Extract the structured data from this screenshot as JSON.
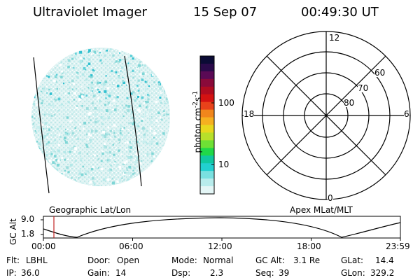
{
  "header": {
    "instrument": "Ultraviolet Imager",
    "date": "15 Sep 07",
    "time": "00:49:30 UT"
  },
  "colorbar": {
    "label": "photon cm-2s-1",
    "label_base": "photon cm",
    "label_exp1": "-2",
    "label_mid": "s",
    "label_exp2": "-1",
    "ticks": [
      "100",
      "10"
    ],
    "colors": [
      "#0b0b35",
      "#2a0a4a",
      "#5a0a55",
      "#8a0a3a",
      "#b00c20",
      "#d41212",
      "#e8421a",
      "#f0861c",
      "#f5b020",
      "#e8d81e",
      "#b8e02a",
      "#6ee035",
      "#20d848",
      "#10c8a0",
      "#22d0d0",
      "#7ae0e0",
      "#b8ecec",
      "#e4f6f6"
    ]
  },
  "left_panel": {
    "caption": "Geographic Lat/Lon"
  },
  "right_panel": {
    "caption": "Apex MLat/MLT",
    "mlt_labels": {
      "top": "12",
      "left": "18",
      "right": "6",
      "bottom": "0"
    },
    "lat_labels": [
      "60",
      "70",
      "80"
    ]
  },
  "timeline": {
    "ylabel": "GC Alt",
    "y_ticks": [
      "9.0",
      "1.8"
    ],
    "x_ticks": [
      "00:00",
      "06:00",
      "12:00",
      "18:00",
      "23:59"
    ],
    "marker_time": "00:49:30"
  },
  "status": {
    "row1": [
      {
        "label": "Flt:",
        "value": "LBHL"
      },
      {
        "label": "Door:",
        "value": "Open"
      },
      {
        "label": "Mode:",
        "value": "Normal"
      },
      {
        "label": "GC Alt:",
        "value": "3.1 Re"
      },
      {
        "label": "GLat:",
        "value": "14.4"
      }
    ],
    "row2": [
      {
        "label": "IP:",
        "value": "36.0"
      },
      {
        "label": "Gain:",
        "value": "14"
      },
      {
        "label": "Dsp:",
        "value": "2.3"
      },
      {
        "label": "Seq:",
        "value": "39"
      },
      {
        "label": "GLon:",
        "value": "329.2"
      }
    ]
  }
}
